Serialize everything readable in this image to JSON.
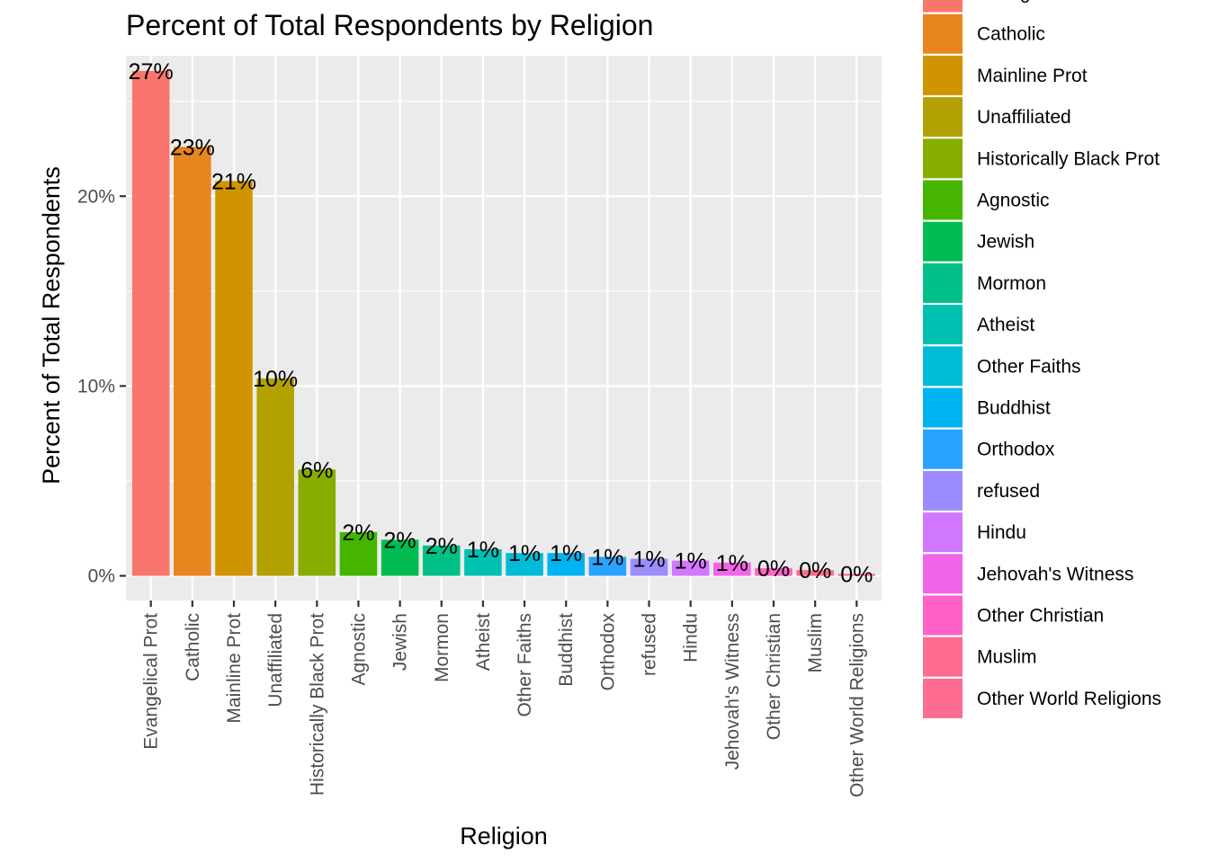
{
  "chart_data": {
    "type": "bar",
    "title": "Percent of Total Respondents by Religion",
    "xlabel": "Religion",
    "ylabel": "Percent of Total Respondents",
    "ylim": [
      -0.013,
      0.274
    ],
    "y_ticks": [
      0,
      0.1,
      0.2
    ],
    "y_tick_labels": [
      "0%",
      "10%",
      "20%"
    ],
    "grid": true,
    "legend_position": "right",
    "categories": [
      "Evangelical Prot",
      "Catholic",
      "Mainline Prot",
      "Unaffiliated",
      "Historically Black Prot",
      "Agnostic",
      "Jewish",
      "Mormon",
      "Atheist",
      "Other Faiths",
      "Buddhist",
      "Orthodox",
      "refused",
      "Hindu",
      "Jehovah's Witness",
      "Other Christian",
      "Muslim",
      "Other World Religions"
    ],
    "values": [
      0.266,
      0.226,
      0.208,
      0.104,
      0.056,
      0.023,
      0.019,
      0.016,
      0.014,
      0.012,
      0.012,
      0.01,
      0.009,
      0.008,
      0.007,
      0.004,
      0.003,
      0.001
    ],
    "value_labels": [
      "27%",
      "23%",
      "21%",
      "10%",
      "6%",
      "2%",
      "2%",
      "2%",
      "1%",
      "1%",
      "1%",
      "1%",
      "1%",
      "1%",
      "1%",
      "0%",
      "0%",
      "0%"
    ],
    "colors": [
      "#F8766D",
      "#E7851E",
      "#D09400",
      "#B2A100",
      "#89AC00",
      "#45B500",
      "#00BC51",
      "#00C087",
      "#00C0B2",
      "#00BCD6",
      "#00B3F2",
      "#29A3FF",
      "#9C8DFF",
      "#D277FF",
      "#F166E8",
      "#FF61C7",
      "#FF6C91",
      "#FF6C91"
    ],
    "legend_entries": [
      "Evangelical Prot",
      "Catholic",
      "Mainline Prot",
      "Unaffiliated",
      "Historically Black Prot",
      "Agnostic",
      "Jewish",
      "Mormon",
      "Atheist",
      "Other Faiths",
      "Buddhist",
      "Orthodox",
      "refused",
      "Hindu",
      "Jehovah's Witness",
      "Other Christian",
      "Muslim",
      "Other World Religions"
    ]
  }
}
